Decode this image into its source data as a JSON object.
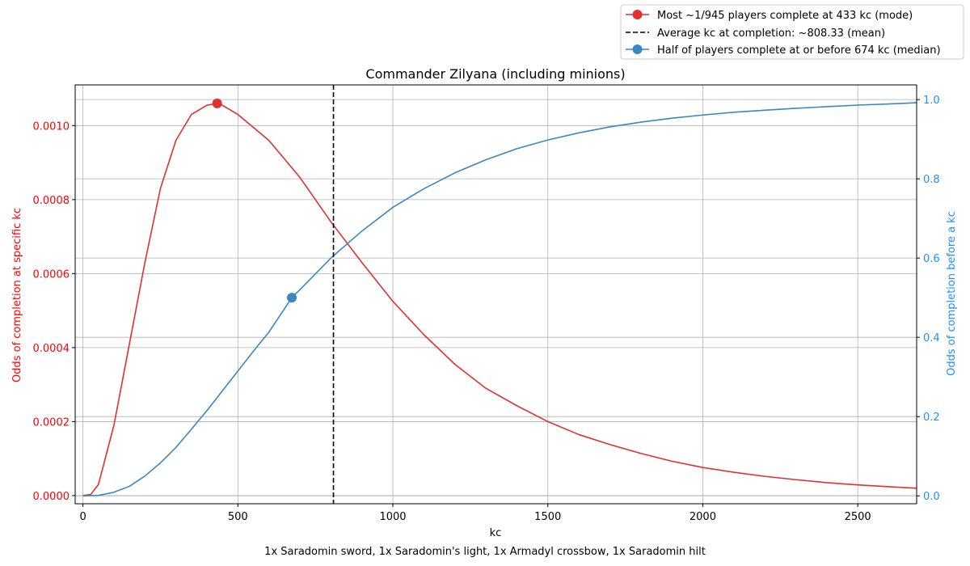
{
  "chart_data": {
    "type": "line",
    "title": "Commander Zilyana (including minions)",
    "xlabel": "kc",
    "footnote": "1x Saradomin sword, 1x Saradomin's light, 1x Armadyl crossbow, 1x Saradomin hilt",
    "xlim": [
      -25,
      2690
    ],
    "x_ticks": [
      0,
      500,
      1000,
      1500,
      2000,
      2500
    ],
    "grid": true,
    "legend_position": "top-right",
    "colors": {
      "pdf": "#e03030",
      "cdf": "#3a87c4",
      "mean": "#000000",
      "left_axis": "#ff0000",
      "right_axis": "#1e90ff"
    },
    "left_axis": {
      "label": "Odds of completion at specific kc",
      "ylim": [
        -2.2e-05,
        0.00111
      ],
      "ticks": [
        0,
        0.0002,
        0.0004,
        0.0006,
        0.0008,
        0.001
      ],
      "tick_labels": [
        "0.0000",
        "0.0002",
        "0.0004",
        "0.0006",
        "0.0008",
        "0.0010"
      ]
    },
    "right_axis": {
      "label": "Odds of completion before a kc",
      "ylim": [
        -0.02,
        1.037
      ],
      "ticks": [
        0,
        0.2,
        0.4,
        0.6,
        0.8,
        1.0
      ],
      "tick_labels": [
        "0.0",
        "0.2",
        "0.4",
        "0.6",
        "0.8",
        "1.0"
      ]
    },
    "series": [
      {
        "axis": "left",
        "x": [
          0,
          25,
          50,
          100,
          150,
          200,
          250,
          300,
          350,
          400,
          433,
          450,
          500,
          600,
          700,
          800,
          900,
          1000,
          1100,
          1200,
          1300,
          1400,
          1500,
          1600,
          1700,
          1800,
          1900,
          2000,
          2100,
          2200,
          2300,
          2400,
          2500,
          2600,
          2690
        ],
        "y": [
          0,
          3e-06,
          3e-05,
          0.00019,
          0.00041,
          0.00063,
          0.00083,
          0.00096,
          0.00103,
          0.001055,
          0.00106,
          0.001055,
          0.00103,
          0.00096,
          0.00086,
          0.00074,
          0.00063,
          0.000525,
          0.000435,
          0.000355,
          0.00029,
          0.000243,
          0.0002,
          0.000165,
          0.000138,
          0.000114,
          9.3e-05,
          7.6e-05,
          6.3e-05,
          5.2e-05,
          4.3e-05,
          3.5e-05,
          2.9e-05,
          2.4e-05,
          2e-05
        ]
      },
      {
        "axis": "right",
        "x": [
          0,
          50,
          100,
          150,
          200,
          250,
          300,
          350,
          400,
          450,
          500,
          550,
          600,
          674,
          700,
          800,
          900,
          1000,
          1100,
          1200,
          1300,
          1400,
          1500,
          1600,
          1700,
          1800,
          1900,
          2000,
          2100,
          2200,
          2300,
          2400,
          2500,
          2600,
          2690
        ],
        "y": [
          0,
          0.001,
          0.009,
          0.024,
          0.05,
          0.083,
          0.122,
          0.168,
          0.215,
          0.265,
          0.315,
          0.365,
          0.413,
          0.5,
          0.52,
          0.6,
          0.668,
          0.728,
          0.775,
          0.815,
          0.848,
          0.876,
          0.898,
          0.916,
          0.931,
          0.943,
          0.953,
          0.961,
          0.968,
          0.973,
          0.978,
          0.982,
          0.986,
          0.989,
          0.992
        ]
      }
    ],
    "markers": [
      {
        "axis": "left",
        "x": 433,
        "y": 0.00106,
        "label": "Most ~1/945 players complete at 433 kc (mode)"
      },
      {
        "axis": "right",
        "x": 674,
        "y": 0.5,
        "label": "Half of players complete at or before 674 kc (median)"
      }
    ],
    "mean_line": {
      "x": 808.33,
      "label": "Average kc at completion: ~808.33 (mean)"
    },
    "legend": [
      "Most ~1/945 players complete at 433 kc (mode)",
      "Average kc at completion: ~808.33 (mean)",
      "Half of players complete at or before 674 kc (median)"
    ]
  }
}
